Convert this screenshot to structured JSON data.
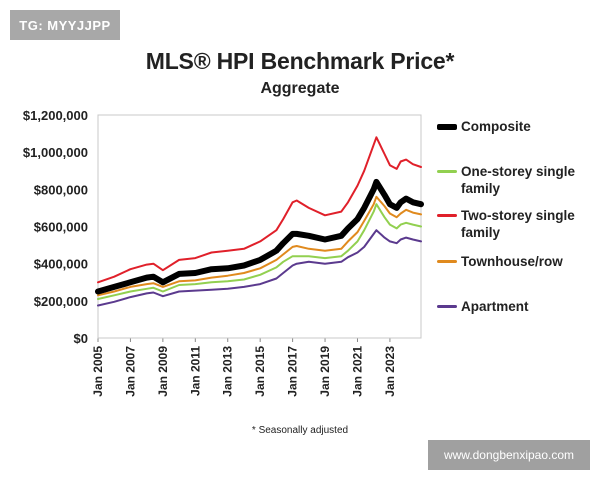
{
  "watermarks": {
    "top_left": "TG: MYYJJPP",
    "bottom_right": "www.dongbenxipao.com"
  },
  "chart_data": {
    "type": "line",
    "title": "MLS® HPI Benchmark Price*",
    "subtitle": "Aggregate",
    "footnote": "* Seasonally adjusted",
    "xlabel": "",
    "ylabel": "",
    "ylim": [
      0,
      1200000
    ],
    "xlim": [
      "2005-01",
      "2024-12"
    ],
    "y_ticks": [
      "$0",
      "$200,000",
      "$400,000",
      "$600,000",
      "$800,000",
      "$1,000,000",
      "$1,200,000"
    ],
    "x_ticks": [
      "Jan 2005",
      "Jan 2007",
      "Jan 2009",
      "Jan 2011",
      "Jan 2013",
      "Jan 2015",
      "Jan 2017",
      "Jan 2019",
      "Jan 2021",
      "Jan 2023"
    ],
    "grid": false,
    "legend_position": "right",
    "x": [
      "2005-01",
      "2006-01",
      "2007-01",
      "2008-01",
      "2008-06",
      "2009-01",
      "2010-01",
      "2011-01",
      "2012-01",
      "2013-01",
      "2014-01",
      "2015-01",
      "2016-01",
      "2016-06",
      "2017-01",
      "2017-04",
      "2018-01",
      "2019-01",
      "2020-01",
      "2020-06",
      "2021-01",
      "2021-06",
      "2022-01",
      "2022-03",
      "2022-09",
      "2023-01",
      "2023-06",
      "2023-09",
      "2024-01",
      "2024-06",
      "2024-12"
    ],
    "series": [
      {
        "name": "Composite",
        "color": "#000000",
        "values": [
          250000,
          275000,
          300000,
          325000,
          330000,
          300000,
          345000,
          350000,
          370000,
          375000,
          390000,
          420000,
          470000,
          510000,
          560000,
          560000,
          550000,
          530000,
          550000,
          590000,
          640000,
          700000,
          800000,
          840000,
          770000,
          720000,
          700000,
          730000,
          750000,
          730000,
          720000
        ]
      },
      {
        "name": "One-storey single family",
        "color": "#92d050",
        "values": [
          210000,
          230000,
          250000,
          265000,
          270000,
          250000,
          285000,
          290000,
          300000,
          305000,
          315000,
          340000,
          380000,
          410000,
          440000,
          440000,
          440000,
          430000,
          440000,
          470000,
          520000,
          580000,
          680000,
          720000,
          650000,
          610000,
          590000,
          610000,
          620000,
          610000,
          600000
        ]
      },
      {
        "name": "Two-storey single family",
        "color": "#e0202a",
        "values": [
          300000,
          330000,
          370000,
          395000,
          400000,
          365000,
          420000,
          430000,
          460000,
          470000,
          480000,
          520000,
          580000,
          640000,
          730000,
          740000,
          700000,
          660000,
          680000,
          730000,
          820000,
          900000,
          1040000,
          1080000,
          990000,
          930000,
          910000,
          950000,
          960000,
          935000,
          920000
        ]
      },
      {
        "name": "Townhouse/row",
        "color": "#e08a1e",
        "values": [
          230000,
          250000,
          275000,
          290000,
          295000,
          275000,
          305000,
          310000,
          325000,
          335000,
          350000,
          375000,
          420000,
          450000,
          490000,
          495000,
          480000,
          470000,
          480000,
          520000,
          570000,
          630000,
          720000,
          760000,
          710000,
          670000,
          650000,
          670000,
          690000,
          675000,
          665000
        ]
      },
      {
        "name": "Apartment",
        "color": "#5b3a8e",
        "values": [
          175000,
          195000,
          220000,
          240000,
          245000,
          225000,
          250000,
          255000,
          260000,
          265000,
          275000,
          290000,
          320000,
          350000,
          390000,
          400000,
          410000,
          400000,
          410000,
          435000,
          460000,
          490000,
          560000,
          580000,
          540000,
          520000,
          510000,
          530000,
          540000,
          530000,
          520000
        ]
      }
    ]
  }
}
